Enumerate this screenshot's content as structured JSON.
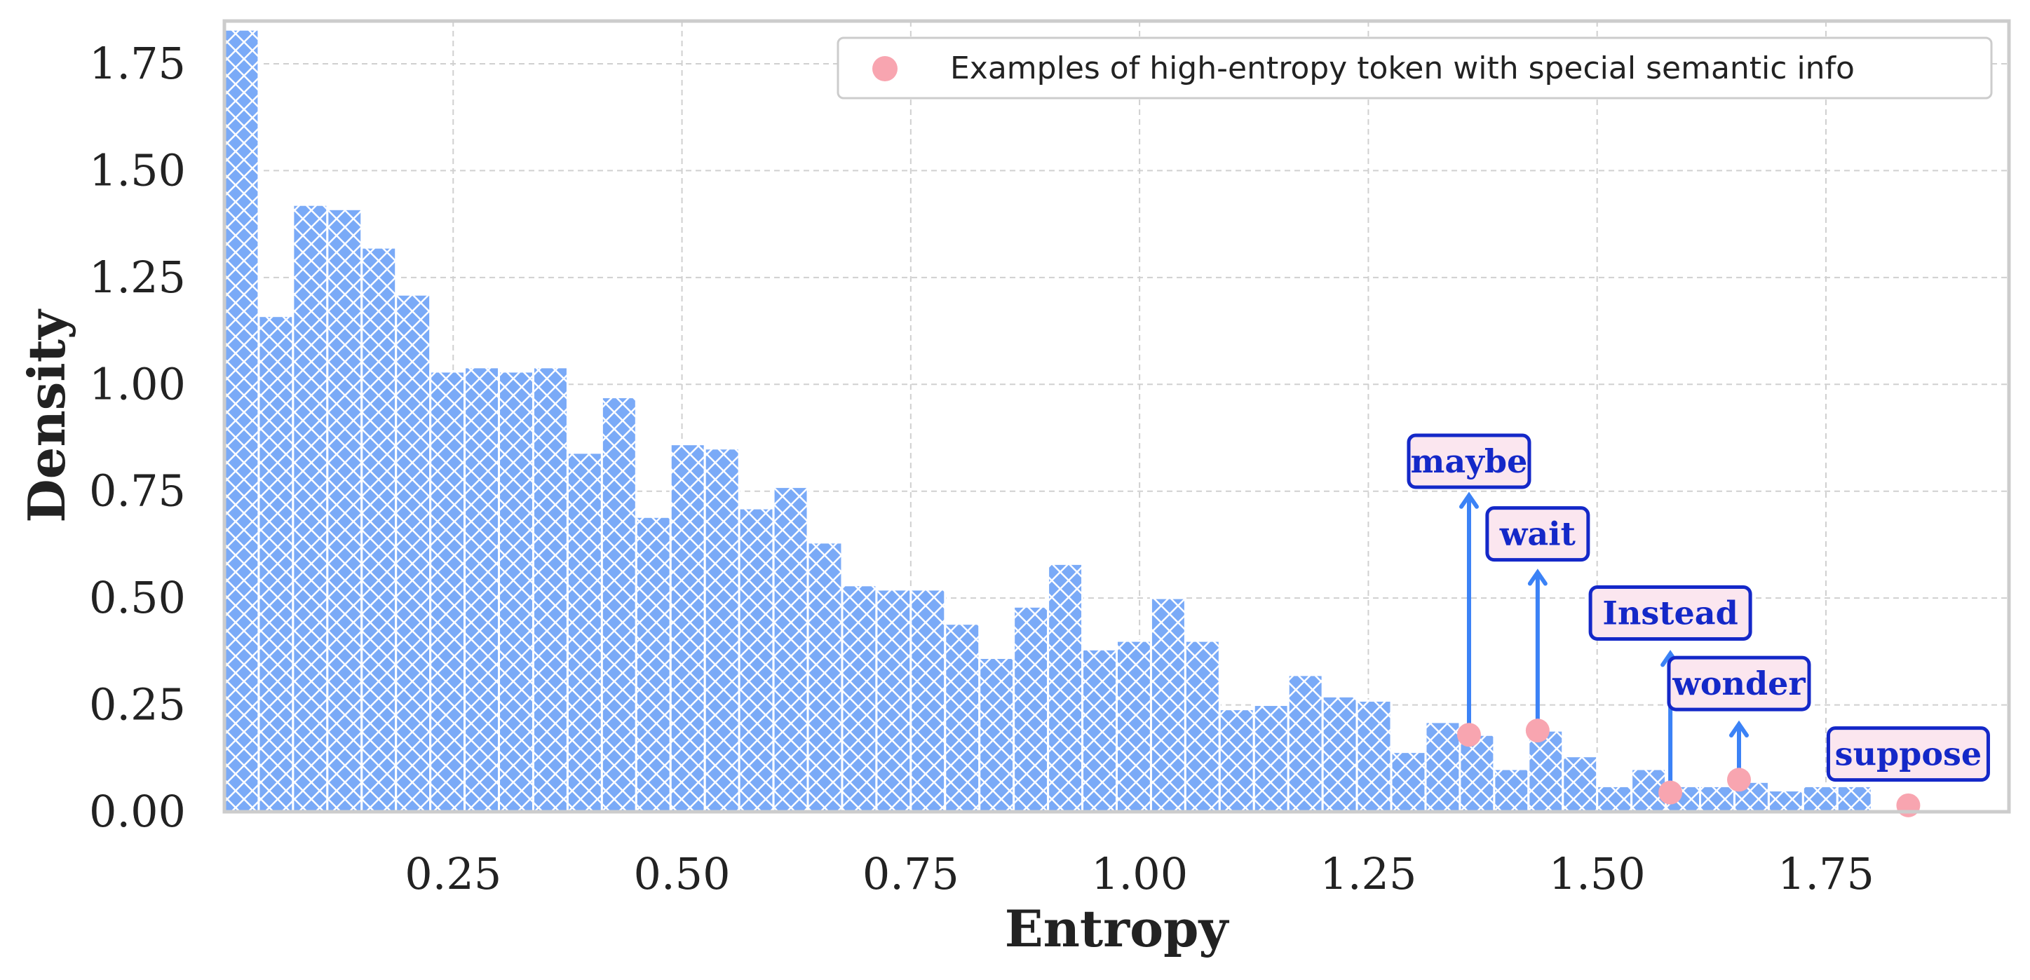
{
  "chart_data": {
    "type": "bar",
    "xlabel": "Entropy",
    "ylabel": "Density",
    "xlim": [
      0.0,
      1.95
    ],
    "ylim": [
      0.0,
      1.85
    ],
    "x_ticks": [
      0.25,
      0.5,
      0.75,
      1.0,
      1.25,
      1.5,
      1.75
    ],
    "x_tick_labels": [
      "0.25",
      "0.50",
      "0.75",
      "1.00",
      "1.25",
      "1.50",
      "1.75"
    ],
    "y_ticks": [
      0.0,
      0.25,
      0.5,
      0.75,
      1.0,
      1.25,
      1.5,
      1.75
    ],
    "y_tick_labels": [
      "0.00",
      "0.25",
      "0.50",
      "0.75",
      "1.00",
      "1.25",
      "1.50",
      "1.75"
    ],
    "grid": true,
    "bin_width": 0.0375,
    "bin_starts": [
      0.0,
      0.0375,
      0.075,
      0.1125,
      0.15,
      0.1875,
      0.225,
      0.2625,
      0.3,
      0.3375,
      0.375,
      0.4125,
      0.45,
      0.4875,
      0.525,
      0.5625,
      0.6,
      0.6375,
      0.675,
      0.7125,
      0.75,
      0.7875,
      0.825,
      0.8625,
      0.9,
      0.9375,
      0.975,
      1.0125,
      1.05,
      1.0875,
      1.125,
      1.1625,
      1.2,
      1.2375,
      1.275,
      1.3125,
      1.35,
      1.3875,
      1.425,
      1.4625,
      1.5,
      1.5375,
      1.575,
      1.6125,
      1.65,
      1.6875,
      1.725,
      1.7625
    ],
    "values": [
      1.83,
      1.16,
      1.42,
      1.41,
      1.32,
      1.21,
      1.03,
      1.04,
      1.03,
      1.04,
      0.84,
      0.97,
      0.69,
      0.86,
      0.85,
      0.71,
      0.76,
      0.63,
      0.53,
      0.52,
      0.52,
      0.44,
      0.36,
      0.48,
      0.58,
      0.38,
      0.4,
      0.5,
      0.4,
      0.24,
      0.25,
      0.32,
      0.27,
      0.26,
      0.14,
      0.21,
      0.18,
      0.1,
      0.19,
      0.13,
      0.06,
      0.1,
      0.06,
      0.06,
      0.07,
      0.05,
      0.06,
      0.06
    ],
    "bar_color": "#7aaaf7",
    "legend": {
      "position": "top-right",
      "entries": [
        {
          "label": "Examples of high-entropy token with special semantic info",
          "color": "#f8a5b0"
        }
      ]
    },
    "annotations": [
      {
        "text": "maybe",
        "x": 1.36,
        "y": 0.18,
        "arrow_to_y": 0.74,
        "label_y": 0.82
      },
      {
        "text": "wait",
        "x": 1.435,
        "y": 0.19,
        "arrow_to_y": 0.56,
        "label_y": 0.65
      },
      {
        "text": "Instead",
        "x": 1.58,
        "y": 0.045,
        "arrow_to_y": 0.37,
        "label_y": 0.465
      },
      {
        "text": "wonder",
        "x": 1.655,
        "y": 0.075,
        "arrow_to_y": 0.205,
        "label_y": 0.3
      },
      {
        "text": "suppose",
        "x": 1.84,
        "y": 0.015,
        "label_y": 0.135
      }
    ],
    "annotation_colors": {
      "point": "#f8a5b0",
      "arrow": "#3b82f6",
      "box_fill": "#fbe6ef",
      "box_border": "#1428c8",
      "text": "#1428c8"
    }
  }
}
